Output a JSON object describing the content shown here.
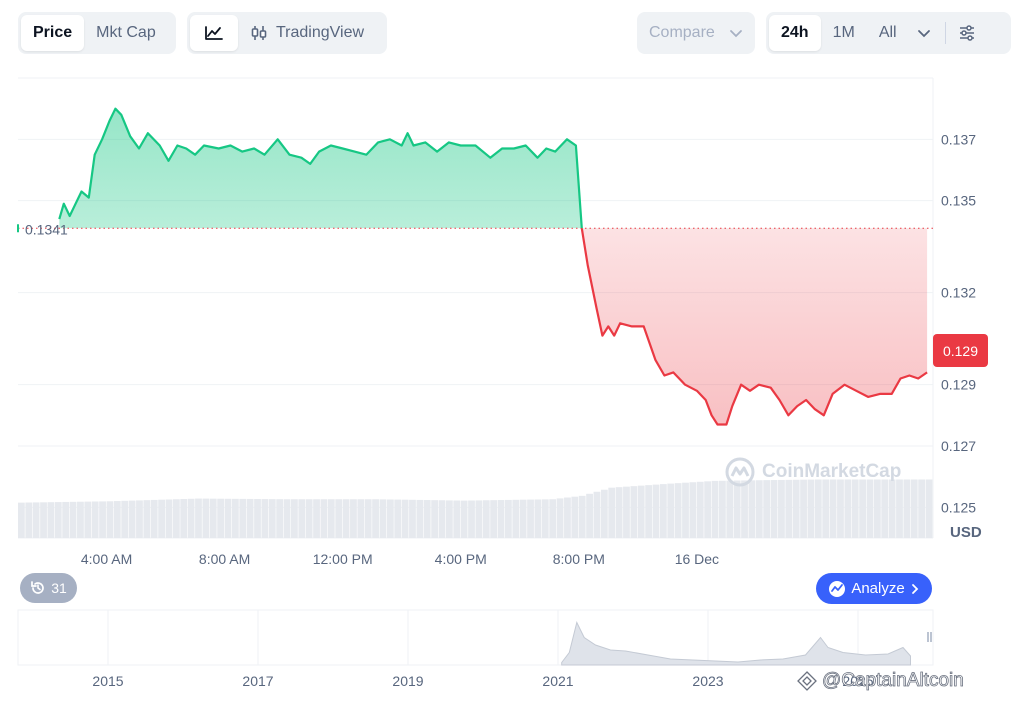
{
  "toolbar": {
    "type_options": [
      "Price",
      "Mkt Cap"
    ],
    "active_type": "Price",
    "view_tradingview": "TradingView",
    "compare_label": "Compare",
    "range_options": [
      "24h",
      "1M",
      "All"
    ],
    "active_range": "24h",
    "icons": {
      "line_chart": "line-chart-icon",
      "candlestick": "candlestick-icon",
      "chevron": "chevron-down-icon",
      "settings": "sliders-icon",
      "history": "history-icon",
      "analyze": "analyze-icon",
      "chevron_right": "chevron-right-icon"
    }
  },
  "badges": {
    "open_price": "0.1341",
    "current_price": "0.129",
    "replay_count": "31",
    "analyze": "Analyze"
  },
  "watermark": "CoinMarketCap",
  "credit": "@CaptainAltcoin",
  "colors": {
    "up": "#16c784",
    "down": "#ea3943",
    "accent": "#3861fb"
  },
  "chart_data": {
    "type": "area",
    "currency_label": "USD",
    "baseline": 0.1341,
    "ylim": [
      0.124,
      0.139
    ],
    "y_ticks": [
      {
        "value": 0.137,
        "label": "0.137"
      },
      {
        "value": 0.135,
        "label": "0.135"
      },
      {
        "value": 0.132,
        "label": "0.132"
      },
      {
        "value": 0.129,
        "label": "0.129"
      },
      {
        "value": 0.127,
        "label": "0.127"
      },
      {
        "value": 0.125,
        "label": "0.125"
      }
    ],
    "x_ticks": [
      {
        "hour": 3,
        "label": "4:00 AM"
      },
      {
        "hour": 7,
        "label": "8:00 AM"
      },
      {
        "hour": 11,
        "label": "12:00 PM"
      },
      {
        "hour": 15,
        "label": "4:00 PM"
      },
      {
        "hour": 19,
        "label": "8:00 PM"
      },
      {
        "hour": 23,
        "label": "16 Dec"
      }
    ],
    "price_series": [
      [
        1.4,
        0.1344
      ],
      [
        1.55,
        0.1349
      ],
      [
        1.75,
        0.1345
      ],
      [
        1.95,
        0.1349
      ],
      [
        2.15,
        0.1353
      ],
      [
        2.4,
        0.1351
      ],
      [
        2.6,
        0.1365
      ],
      [
        2.85,
        0.137
      ],
      [
        3.1,
        0.1376
      ],
      [
        3.3,
        0.138
      ],
      [
        3.5,
        0.1378
      ],
      [
        3.8,
        0.1371
      ],
      [
        4.1,
        0.1367
      ],
      [
        4.4,
        0.1372
      ],
      [
        4.8,
        0.1368
      ],
      [
        5.1,
        0.1363
      ],
      [
        5.4,
        0.1368
      ],
      [
        5.7,
        0.1367
      ],
      [
        6.0,
        0.1365
      ],
      [
        6.3,
        0.1368
      ],
      [
        6.8,
        0.1367
      ],
      [
        7.2,
        0.1368
      ],
      [
        7.6,
        0.1366
      ],
      [
        8.0,
        0.1367
      ],
      [
        8.35,
        0.1365
      ],
      [
        8.8,
        0.137
      ],
      [
        9.2,
        0.1365
      ],
      [
        9.6,
        0.1364
      ],
      [
        9.9,
        0.1362
      ],
      [
        10.2,
        0.1366
      ],
      [
        10.6,
        0.1368
      ],
      [
        11.0,
        0.1367
      ],
      [
        11.4,
        0.1366
      ],
      [
        11.8,
        0.1365
      ],
      [
        12.2,
        0.1369
      ],
      [
        12.6,
        0.137
      ],
      [
        13.0,
        0.1368
      ],
      [
        13.2,
        0.1372
      ],
      [
        13.4,
        0.1368
      ],
      [
        13.8,
        0.1369
      ],
      [
        14.2,
        0.1366
      ],
      [
        14.6,
        0.1369
      ],
      [
        15.0,
        0.1368
      ],
      [
        15.5,
        0.1368
      ],
      [
        16.0,
        0.1364
      ],
      [
        16.4,
        0.1367
      ],
      [
        16.8,
        0.1367
      ],
      [
        17.2,
        0.1368
      ],
      [
        17.6,
        0.1364
      ],
      [
        17.9,
        0.1367
      ],
      [
        18.2,
        0.1366
      ],
      [
        18.6,
        0.137
      ],
      [
        18.9,
        0.1368
      ],
      [
        19.1,
        0.1341
      ],
      [
        19.3,
        0.1329
      ],
      [
        19.6,
        0.1315
      ],
      [
        19.8,
        0.1306
      ],
      [
        20.0,
        0.1309
      ],
      [
        20.2,
        0.1306
      ],
      [
        20.4,
        0.131
      ],
      [
        20.8,
        0.1309
      ],
      [
        21.2,
        0.1309
      ],
      [
        21.6,
        0.1298
      ],
      [
        21.9,
        0.1293
      ],
      [
        22.2,
        0.1294
      ],
      [
        22.6,
        0.129
      ],
      [
        23.0,
        0.1288
      ],
      [
        23.3,
        0.1285
      ],
      [
        23.5,
        0.128
      ],
      [
        23.7,
        0.1277
      ],
      [
        24.0,
        0.1277
      ],
      [
        24.2,
        0.1283
      ],
      [
        24.5,
        0.129
      ],
      [
        24.8,
        0.1288
      ],
      [
        25.1,
        0.129
      ],
      [
        25.5,
        0.1289
      ],
      [
        25.8,
        0.1285
      ],
      [
        26.1,
        0.128
      ],
      [
        26.4,
        0.1283
      ],
      [
        26.7,
        0.1285
      ],
      [
        27.0,
        0.1282
      ],
      [
        27.3,
        0.128
      ],
      [
        27.6,
        0.1287
      ],
      [
        28.0,
        0.129
      ],
      [
        28.4,
        0.1288
      ],
      [
        28.8,
        0.1286
      ],
      [
        29.2,
        0.1287
      ],
      [
        29.6,
        0.1287
      ],
      [
        29.9,
        0.1292
      ],
      [
        30.2,
        0.1293
      ],
      [
        30.5,
        0.1292
      ],
      [
        30.8,
        0.1294
      ]
    ],
    "volume_series": [
      [
        0,
        0.52
      ],
      [
        3,
        0.54
      ],
      [
        6,
        0.58
      ],
      [
        9,
        0.57
      ],
      [
        12,
        0.57
      ],
      [
        15,
        0.55
      ],
      [
        18,
        0.57
      ],
      [
        19,
        0.62
      ],
      [
        20,
        0.74
      ],
      [
        22,
        0.8
      ],
      [
        23.5,
        0.84
      ],
      [
        25,
        0.85
      ],
      [
        27,
        0.86
      ],
      [
        29,
        0.86
      ],
      [
        31,
        0.86
      ]
    ],
    "overview": {
      "x_ticks": [
        {
          "year": 2015,
          "label": "2015"
        },
        {
          "year": 2017,
          "label": "2017"
        },
        {
          "year": 2019,
          "label": "2019"
        },
        {
          "year": 2021,
          "label": "2021"
        },
        {
          "year": 2023,
          "label": "2023"
        },
        {
          "year": 2025,
          "label": "2025"
        }
      ],
      "series": [
        [
          2021.05,
          0.05
        ],
        [
          2021.15,
          0.25
        ],
        [
          2021.25,
          0.85
        ],
        [
          2021.35,
          0.55
        ],
        [
          2021.5,
          0.4
        ],
        [
          2021.7,
          0.3
        ],
        [
          2021.9,
          0.28
        ],
        [
          2022.2,
          0.2
        ],
        [
          2022.5,
          0.12
        ],
        [
          2022.8,
          0.1
        ],
        [
          2023.1,
          0.08
        ],
        [
          2023.4,
          0.06
        ],
        [
          2023.7,
          0.1
        ],
        [
          2024.0,
          0.12
        ],
        [
          2024.3,
          0.2
        ],
        [
          2024.5,
          0.55
        ],
        [
          2024.6,
          0.35
        ],
        [
          2024.8,
          0.25
        ],
        [
          2025.1,
          0.2
        ],
        [
          2025.4,
          0.22
        ],
        [
          2025.6,
          0.35
        ],
        [
          2025.7,
          0.18
        ]
      ]
    }
  }
}
